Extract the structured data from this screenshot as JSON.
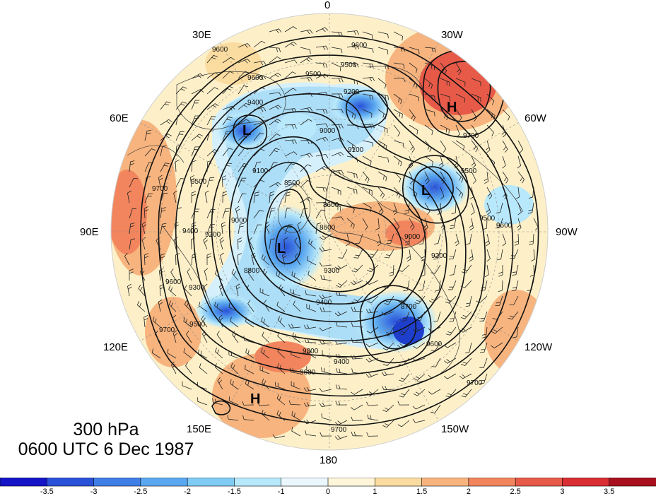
{
  "meridian_labels": {
    "lon_0": "0",
    "lon_30E": "30E",
    "lon_30W": "30W",
    "lon_60E": "60E",
    "lon_60W": "60W",
    "lon_90E": "90E",
    "lon_90W": "90W",
    "lon_120E": "120E",
    "lon_120W": "120W",
    "lon_150E": "150E",
    "lon_150W": "150W",
    "lon_180": "180"
  },
  "title": {
    "level": "300 hPa",
    "time": "0600 UTC 6 Dec 1987"
  },
  "pressure_centers": {
    "high_1": "H",
    "high_2": "H",
    "low_1": "L",
    "low_2": "L",
    "low_3": "L"
  },
  "contour_labels": [
    "9600",
    "9500",
    "9200",
    "9400",
    "9100",
    "9000",
    "9700",
    "9300",
    "8800",
    "8700",
    "8600",
    "8500",
    "9800",
    "9900"
  ],
  "colorbar": {
    "ticks": [
      "-3.5",
      "-3",
      "-2.5",
      "-2",
      "-1.5",
      "-1",
      "0",
      "1",
      "1.5",
      "2",
      "2.5",
      "3",
      "3.5"
    ],
    "colors": [
      "#1515c8",
      "#2a52d8",
      "#3f7fe5",
      "#5aa8ef",
      "#80cbf6",
      "#b8e8fb",
      "#eaf8fd",
      "#fff6da",
      "#fbdca0",
      "#f7b47e",
      "#f2855e",
      "#e85a48",
      "#d82e34",
      "#a8101e"
    ]
  },
  "colors": {
    "land_outline": "#333333",
    "contour": "#111111",
    "background": "#ffffff"
  }
}
